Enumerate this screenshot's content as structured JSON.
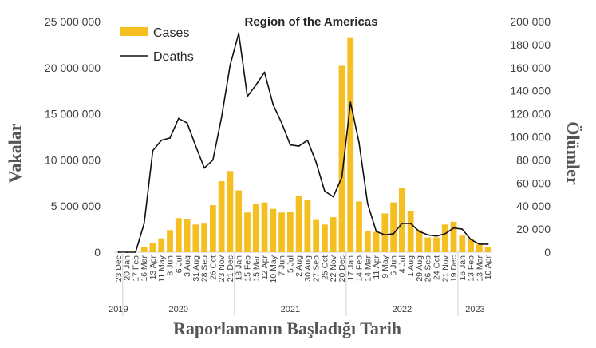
{
  "chart_data": {
    "type": "bar+line",
    "title": "Region of the Americas",
    "xlabel": "Raporlamanın Başladığı Tarih",
    "ylabel_left": "Vakalar",
    "ylabel_right": "Ölümler",
    "ylim_left": [
      0,
      25000000
    ],
    "ylim_right": [
      0,
      200000
    ],
    "yticks_left": [
      "0",
      "5 000 000",
      "10 000 000",
      "15 000 000",
      "20 000 000",
      "25 000 000"
    ],
    "yticks_right": [
      "0",
      "20 000",
      "40 000",
      "60 000",
      "80 000",
      "100 000",
      "120 000",
      "140 000",
      "160 000",
      "180 000",
      "200 000"
    ],
    "legend": [
      "Cases",
      "Deaths"
    ],
    "colors": {
      "cases": "#F5BF22",
      "deaths": "#111111",
      "axis": "#d0d0d0"
    },
    "categories": [
      "23 Dec",
      "20 Jan",
      "17 Feb",
      "16 Mar",
      "13 Apr",
      "11 May",
      "8 Jun",
      "6 Jul",
      "3 Aug",
      "31 Aug",
      "28 Sep",
      "26 Oct",
      "23 Nov",
      "21 Dec",
      "18 Jan",
      "15 Feb",
      "15 Mar",
      "12 Apr",
      "10 May",
      "7 Jun",
      "5 Jul",
      "2 Aug",
      "30 Aug",
      "27 Sep",
      "25 Oct",
      "22 Nov",
      "20 Dec",
      "17 Jan",
      "14 Feb",
      "14 Mar",
      "11 Apr",
      "9 May",
      "6 Jun",
      "4 Jul",
      "1 Aug",
      "29 Aug",
      "26 Sep",
      "24 Oct",
      "21 Nov",
      "19 Dec",
      "16 Jan",
      "13 Feb",
      "13 Mar",
      "10 Apr"
    ],
    "years": [
      {
        "label": "2019",
        "start": 0,
        "end": 0
      },
      {
        "label": "2020",
        "start": 1,
        "end": 13
      },
      {
        "label": "2021",
        "start": 14,
        "end": 26
      },
      {
        "label": "2022",
        "start": 27,
        "end": 39
      },
      {
        "label": "2023",
        "start": 40,
        "end": 43
      }
    ],
    "series": [
      {
        "name": "Cases",
        "kind": "bar",
        "axis": "left",
        "values": [
          0,
          0,
          20000,
          600000,
          1000000,
          1500000,
          2400000,
          3700000,
          3600000,
          3000000,
          3100000,
          5100000,
          7700000,
          8800000,
          6700000,
          4300000,
          5200000,
          5400000,
          4700000,
          4300000,
          4400000,
          6100000,
          5700000,
          3500000,
          3000000,
          3800000,
          20200000,
          23300000,
          5500000,
          2300000,
          2200000,
          4200000,
          5400000,
          7000000,
          4500000,
          2400000,
          1600000,
          1600000,
          3000000,
          3300000,
          1800000,
          1400000,
          900000,
          600000
        ]
      },
      {
        "name": "Deaths",
        "kind": "line",
        "axis": "right",
        "values": [
          0,
          0,
          0,
          25000,
          88000,
          97000,
          99000,
          116000,
          112000,
          92000,
          73000,
          80000,
          117000,
          162000,
          190000,
          135000,
          145000,
          156000,
          128000,
          112000,
          93000,
          92000,
          97000,
          78000,
          53000,
          48000,
          65000,
          130000,
          95000,
          42000,
          18000,
          15000,
          16000,
          25000,
          25000,
          18000,
          15000,
          14000,
          16000,
          21000,
          20000,
          11000,
          7000,
          7000
        ]
      }
    ]
  }
}
